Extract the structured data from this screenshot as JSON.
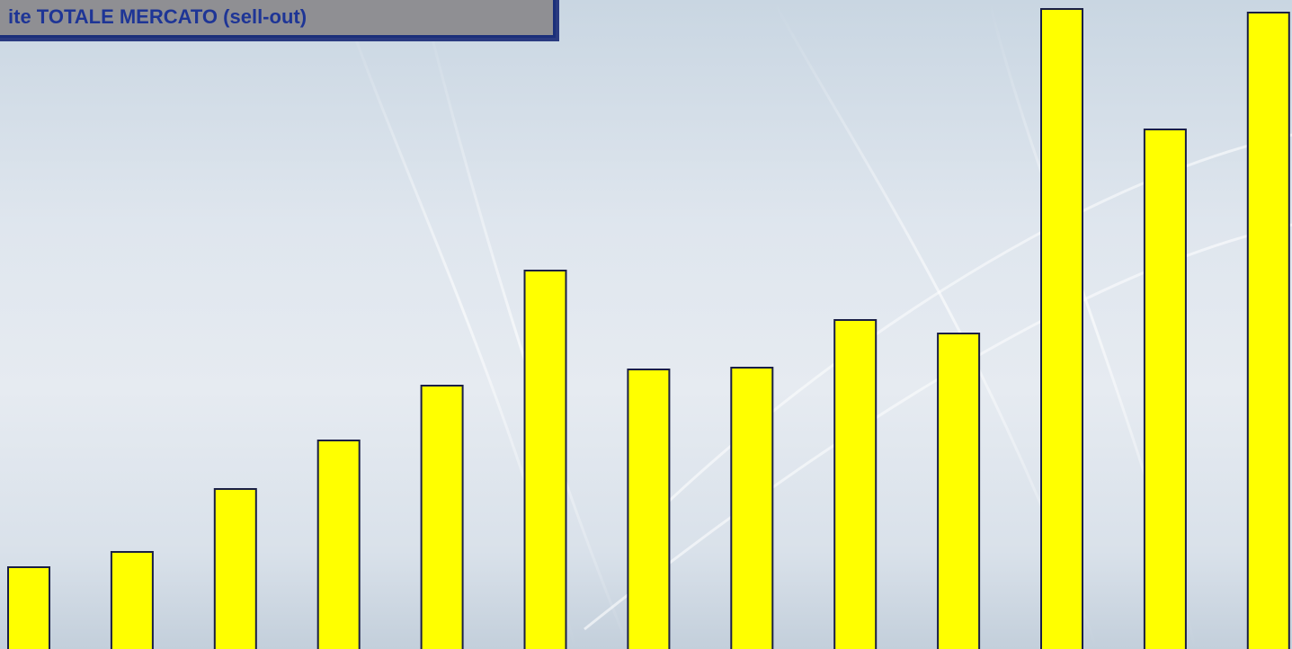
{
  "chart_data": {
    "type": "bar",
    "title": "ite TOTALE MERCATO (sell-out)",
    "categories": [
      null,
      null,
      null,
      null,
      null,
      null,
      null,
      null,
      null,
      null,
      null,
      null,
      null
    ],
    "values": [
      91,
      108,
      178,
      232,
      293,
      421,
      311,
      313,
      366,
      351,
      712,
      578,
      708
    ],
    "color": "#ffff00",
    "ylim": [
      0,
      722
    ],
    "grid": false
  }
}
